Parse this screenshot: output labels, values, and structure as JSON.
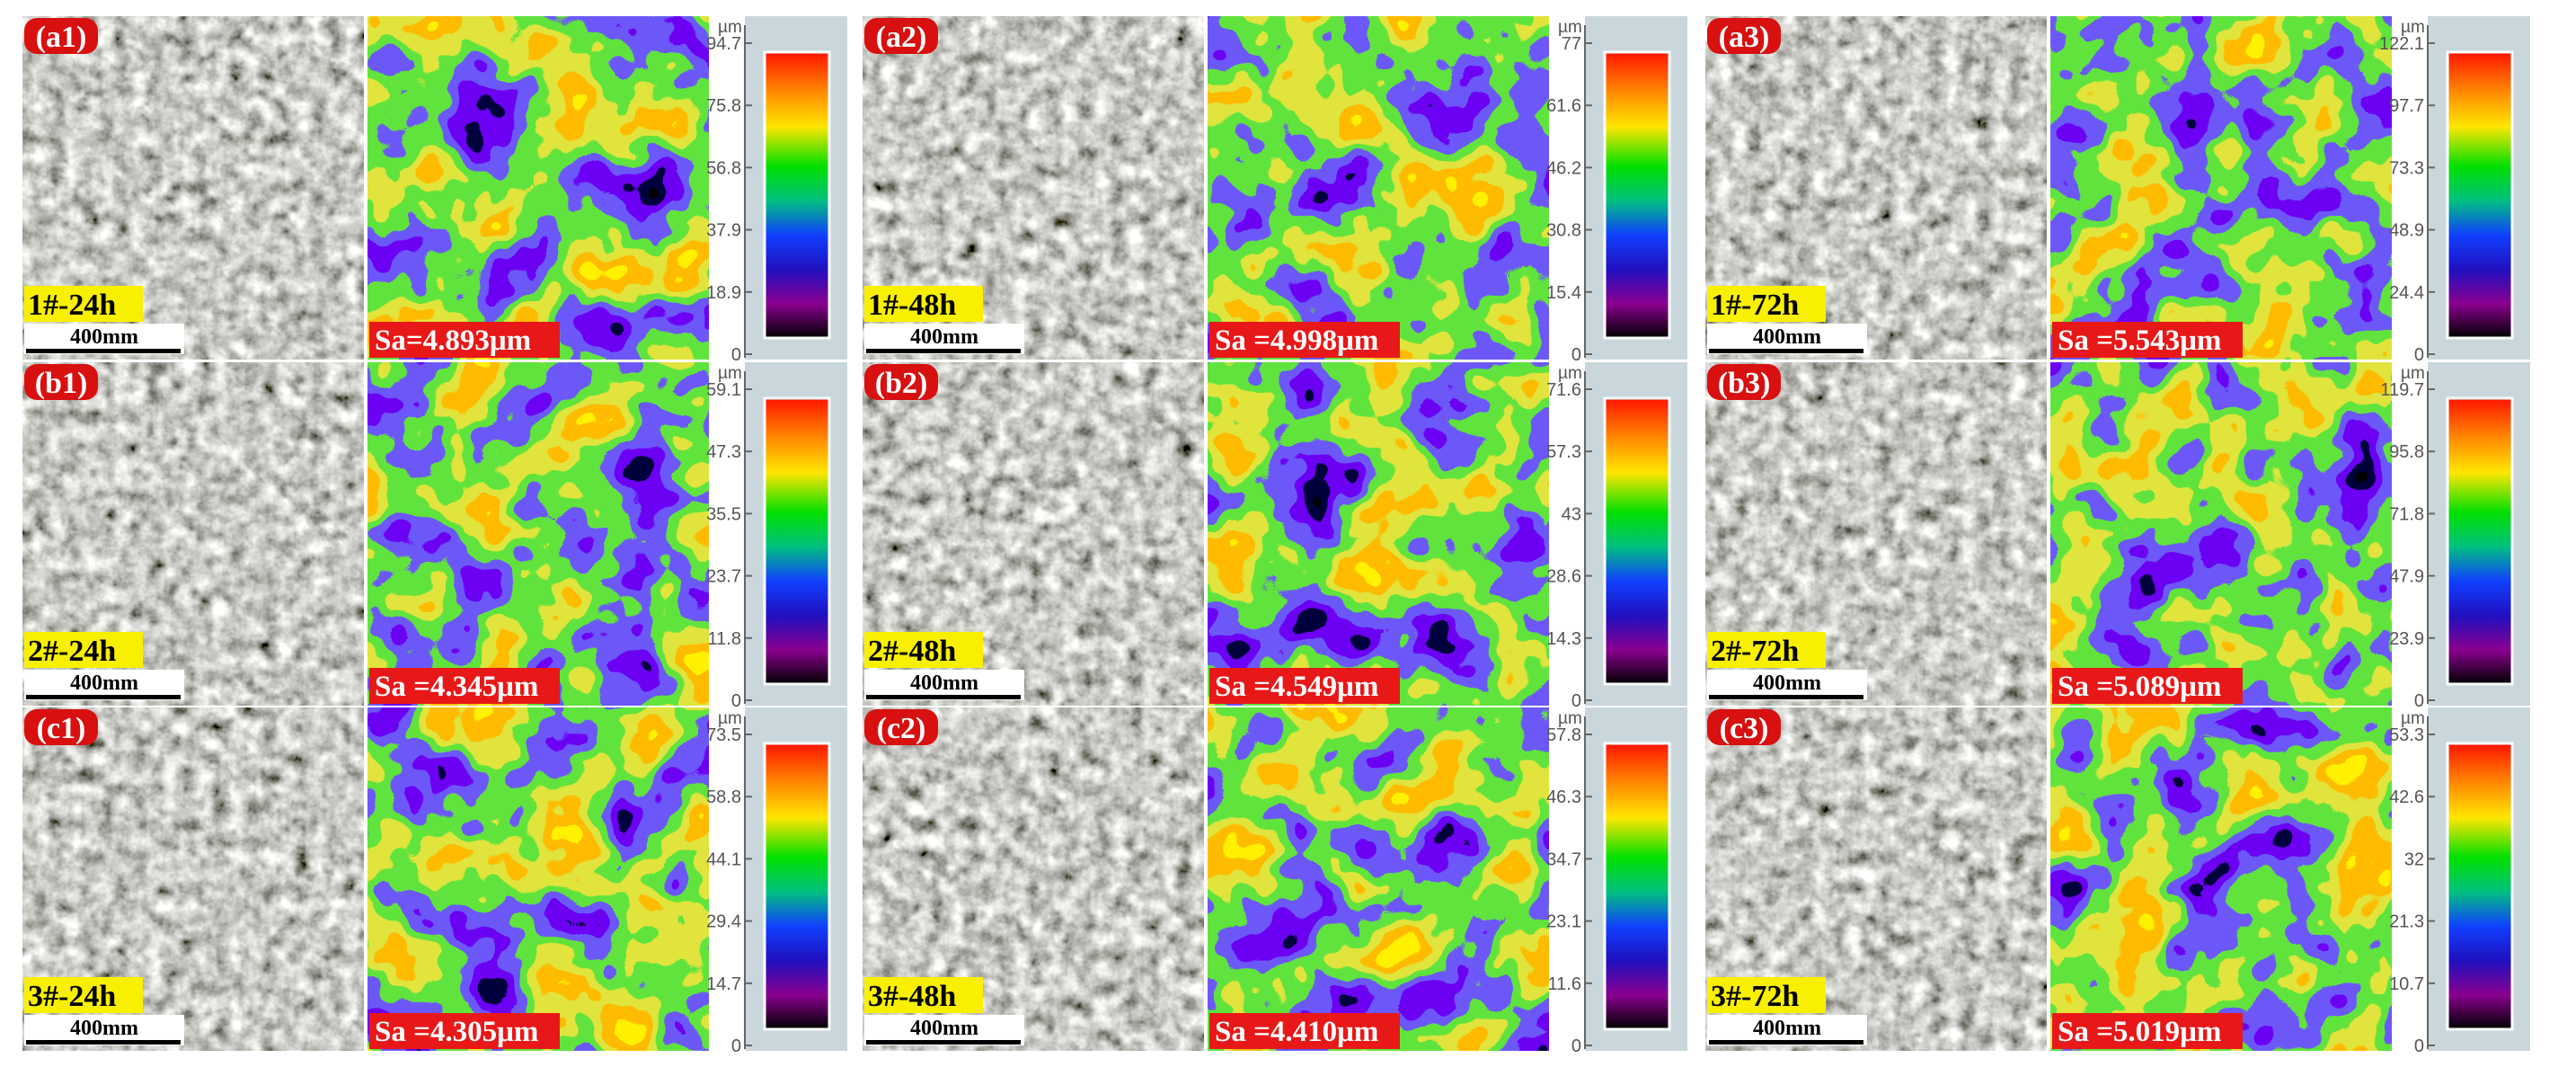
{
  "unit": "µm",
  "scale_bar_label": "400mm",
  "colors": {
    "panel_label_bg": "#d81010",
    "condition_label_bg": "#f8f000",
    "sa_label_bg": "#e81818",
    "colorbar_bg": "#c9d7dc"
  },
  "rows": [
    {
      "cells": [
        {
          "label": "(a1)",
          "condition": "1#-24h",
          "sa": "Sa=4.893μm",
          "ticks": [
            "94.7",
            "75.8",
            "56.8",
            "37.9",
            "18.9",
            "0"
          ]
        },
        {
          "label": "(a2)",
          "condition": "1#-48h",
          "sa": "Sa =4.998μm",
          "ticks": [
            "77",
            "61.6",
            "46.2",
            "30.8",
            "15.4",
            "0"
          ]
        },
        {
          "label": "(a3)",
          "condition": "1#-72h",
          "sa": "Sa =5.543μm",
          "ticks": [
            "122.1",
            "97.7",
            "73.3",
            "48.9",
            "24.4",
            "0"
          ]
        }
      ]
    },
    {
      "cells": [
        {
          "label": "(b1)",
          "condition": "2#-24h",
          "sa": "Sa =4.345μm",
          "ticks": [
            "59.1",
            "47.3",
            "35.5",
            "23.7",
            "11.8",
            "0"
          ]
        },
        {
          "label": "(b2)",
          "condition": "2#-48h",
          "sa": "Sa =4.549μm",
          "ticks": [
            "71.6",
            "57.3",
            "43",
            "28.6",
            "14.3",
            "0"
          ]
        },
        {
          "label": "(b3)",
          "condition": "2#-72h",
          "sa": "Sa =5.089μm",
          "ticks": [
            "119.7",
            "95.8",
            "71.8",
            "47.9",
            "23.9",
            "0"
          ]
        }
      ]
    },
    {
      "cells": [
        {
          "label": "(c1)",
          "condition": "3#-24h",
          "sa": "Sa =4.305μm",
          "ticks": [
            "73.5",
            "58.8",
            "44.1",
            "29.4",
            "14.7",
            "0"
          ]
        },
        {
          "label": "(c2)",
          "condition": "3#-48h",
          "sa": "Sa =4.410μm",
          "ticks": [
            "57.8",
            "46.3",
            "34.7",
            "23.1",
            "11.6",
            "0"
          ]
        },
        {
          "label": "(c3)",
          "condition": "3#-72h",
          "sa": "Sa =5.019μm",
          "ticks": [
            "53.3",
            "42.6",
            "32",
            "21.3",
            "10.7",
            "0"
          ]
        }
      ]
    }
  ]
}
